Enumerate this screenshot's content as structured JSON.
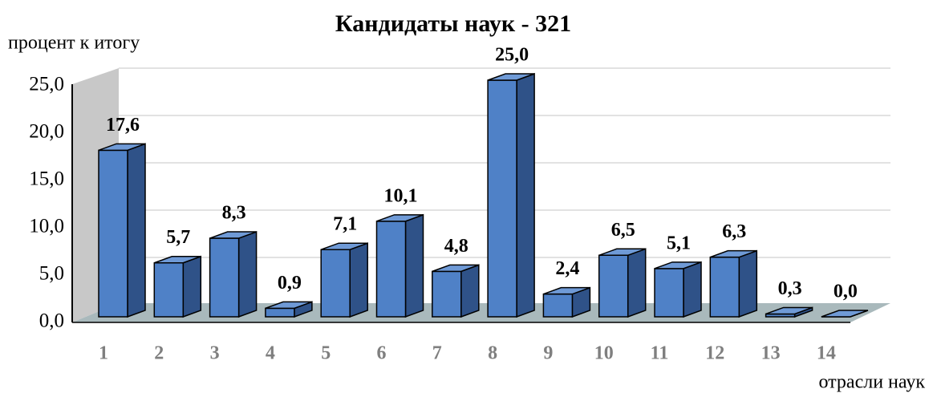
{
  "chart_data": {
    "type": "bar3d",
    "title": "Кандидаты наук - 321",
    "y_label": "процент к итогу",
    "x_label": "отрасли наук",
    "categories": [
      "1",
      "2",
      "3",
      "4",
      "5",
      "6",
      "7",
      "8",
      "9",
      "10",
      "11",
      "12",
      "13",
      "14"
    ],
    "values": [
      17.6,
      5.7,
      8.3,
      0.9,
      7.1,
      10.1,
      4.8,
      25.0,
      2.4,
      6.5,
      5.1,
      6.3,
      0.3,
      0.0
    ],
    "value_labels": [
      "17,6",
      "5,7",
      "8,3",
      "0,9",
      "7,1",
      "10,1",
      "4,8",
      "25,0",
      "2,4",
      "6,5",
      "5,1",
      "6,3",
      "0,3",
      "0,0"
    ],
    "color": "#4f81c7",
    "ylim": [
      0,
      25
    ],
    "yticks": [
      {
        "value": 0,
        "label": "0,0"
      },
      {
        "value": 5,
        "label": "5,0"
      },
      {
        "value": 10,
        "label": "10,0"
      },
      {
        "value": 15,
        "label": "15,0"
      },
      {
        "value": 20,
        "label": "20,0"
      },
      {
        "value": 25,
        "label": "25,0"
      }
    ],
    "grid": true
  }
}
